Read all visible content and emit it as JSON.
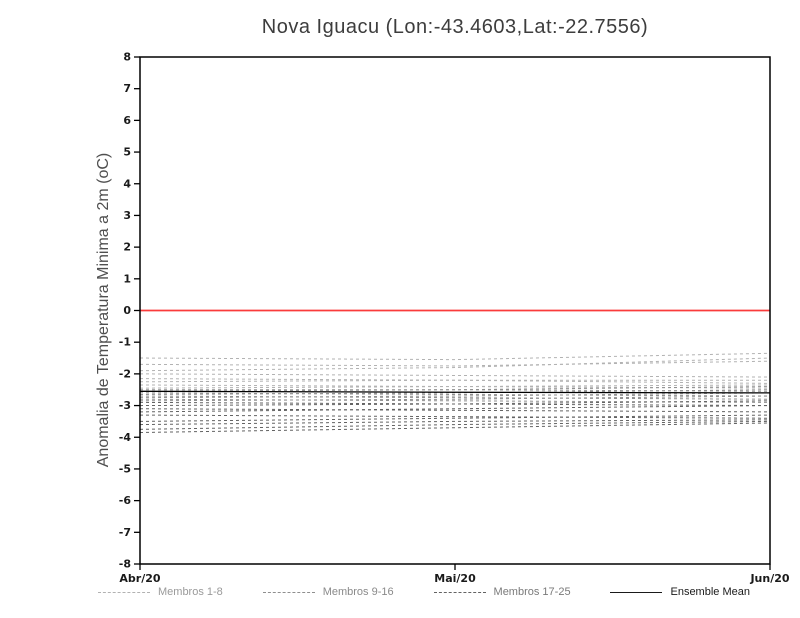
{
  "chart_data": {
    "type": "line",
    "title": "Nova Iguacu (Lon:-43.4603,Lat:-22.7556)",
    "ylabel": "Anomalia de Temperatura Minima a 2m (oC)",
    "xlabel": "",
    "ylim": [
      -8,
      8
    ],
    "ytick_step": 1,
    "x_ticklabels": [
      "Abr/20",
      "Mai/20",
      "Jun/20"
    ],
    "grid": false,
    "legend_position": "bottom",
    "zero_line": {
      "value": 0,
      "color": "#fa3c3c"
    },
    "frame_color": "#000000",
    "groups": [
      {
        "name": "Membros 1-8",
        "color": "#b2b2b2",
        "style": "dashed",
        "members": [
          [
            -1.5,
            -1.55,
            -1.35
          ],
          [
            -1.7,
            -1.75,
            -1.6
          ],
          [
            -1.9,
            -1.8,
            -1.5
          ],
          [
            -2.0,
            -2.05,
            -2.1
          ],
          [
            -2.15,
            -2.2,
            -2.3
          ],
          [
            -2.25,
            -2.2,
            -2.2
          ],
          [
            -2.35,
            -2.4,
            -2.45
          ],
          [
            -2.45,
            -2.4,
            -2.35
          ]
        ]
      },
      {
        "name": "Membros 9-16",
        "color": "#8f8f8f",
        "style": "dashed",
        "members": [
          [
            -2.5,
            -2.5,
            -2.55
          ],
          [
            -2.55,
            -2.5,
            -2.4
          ],
          [
            -2.6,
            -2.65,
            -2.7
          ],
          [
            -2.65,
            -2.6,
            -2.5
          ],
          [
            -2.7,
            -2.75,
            -2.8
          ],
          [
            -2.75,
            -2.7,
            -2.6
          ],
          [
            -2.8,
            -2.85,
            -2.9
          ],
          [
            -2.85,
            -2.8,
            -2.7
          ]
        ]
      },
      {
        "name": "Membros 17-25",
        "color": "#636363",
        "style": "dashed",
        "members": [
          [
            -2.9,
            -2.95,
            -3.0
          ],
          [
            -3.0,
            -2.95,
            -2.85
          ],
          [
            -3.1,
            -3.15,
            -3.2
          ],
          [
            -3.2,
            -3.1,
            -3.0
          ],
          [
            -3.3,
            -3.35,
            -3.4
          ],
          [
            -3.5,
            -3.4,
            -3.3
          ],
          [
            -3.6,
            -3.5,
            -3.45
          ],
          [
            -3.75,
            -3.6,
            -3.5
          ],
          [
            -3.85,
            -3.7,
            -3.55
          ]
        ]
      }
    ],
    "ensemble_mean": {
      "name": "Ensemble Mean",
      "color": "#000000",
      "style": "solid",
      "values": [
        -2.55,
        -2.58,
        -2.6
      ]
    },
    "legend": [
      {
        "label": "Membros 1-8",
        "color": "#b2b2b2",
        "label_color": "#9a9a9a",
        "style": "dashed"
      },
      {
        "label": "Membros 9-16",
        "color": "#8f8f8f",
        "label_color": "#8a8a8a",
        "style": "dashed"
      },
      {
        "label": "Membros 17-25",
        "color": "#636363",
        "label_color": "#7a7a7a",
        "style": "dashed"
      },
      {
        "label": "Ensemble Mean",
        "color": "#1a1a1a",
        "label_color": "#1a1a1a",
        "style": "solid"
      }
    ]
  }
}
